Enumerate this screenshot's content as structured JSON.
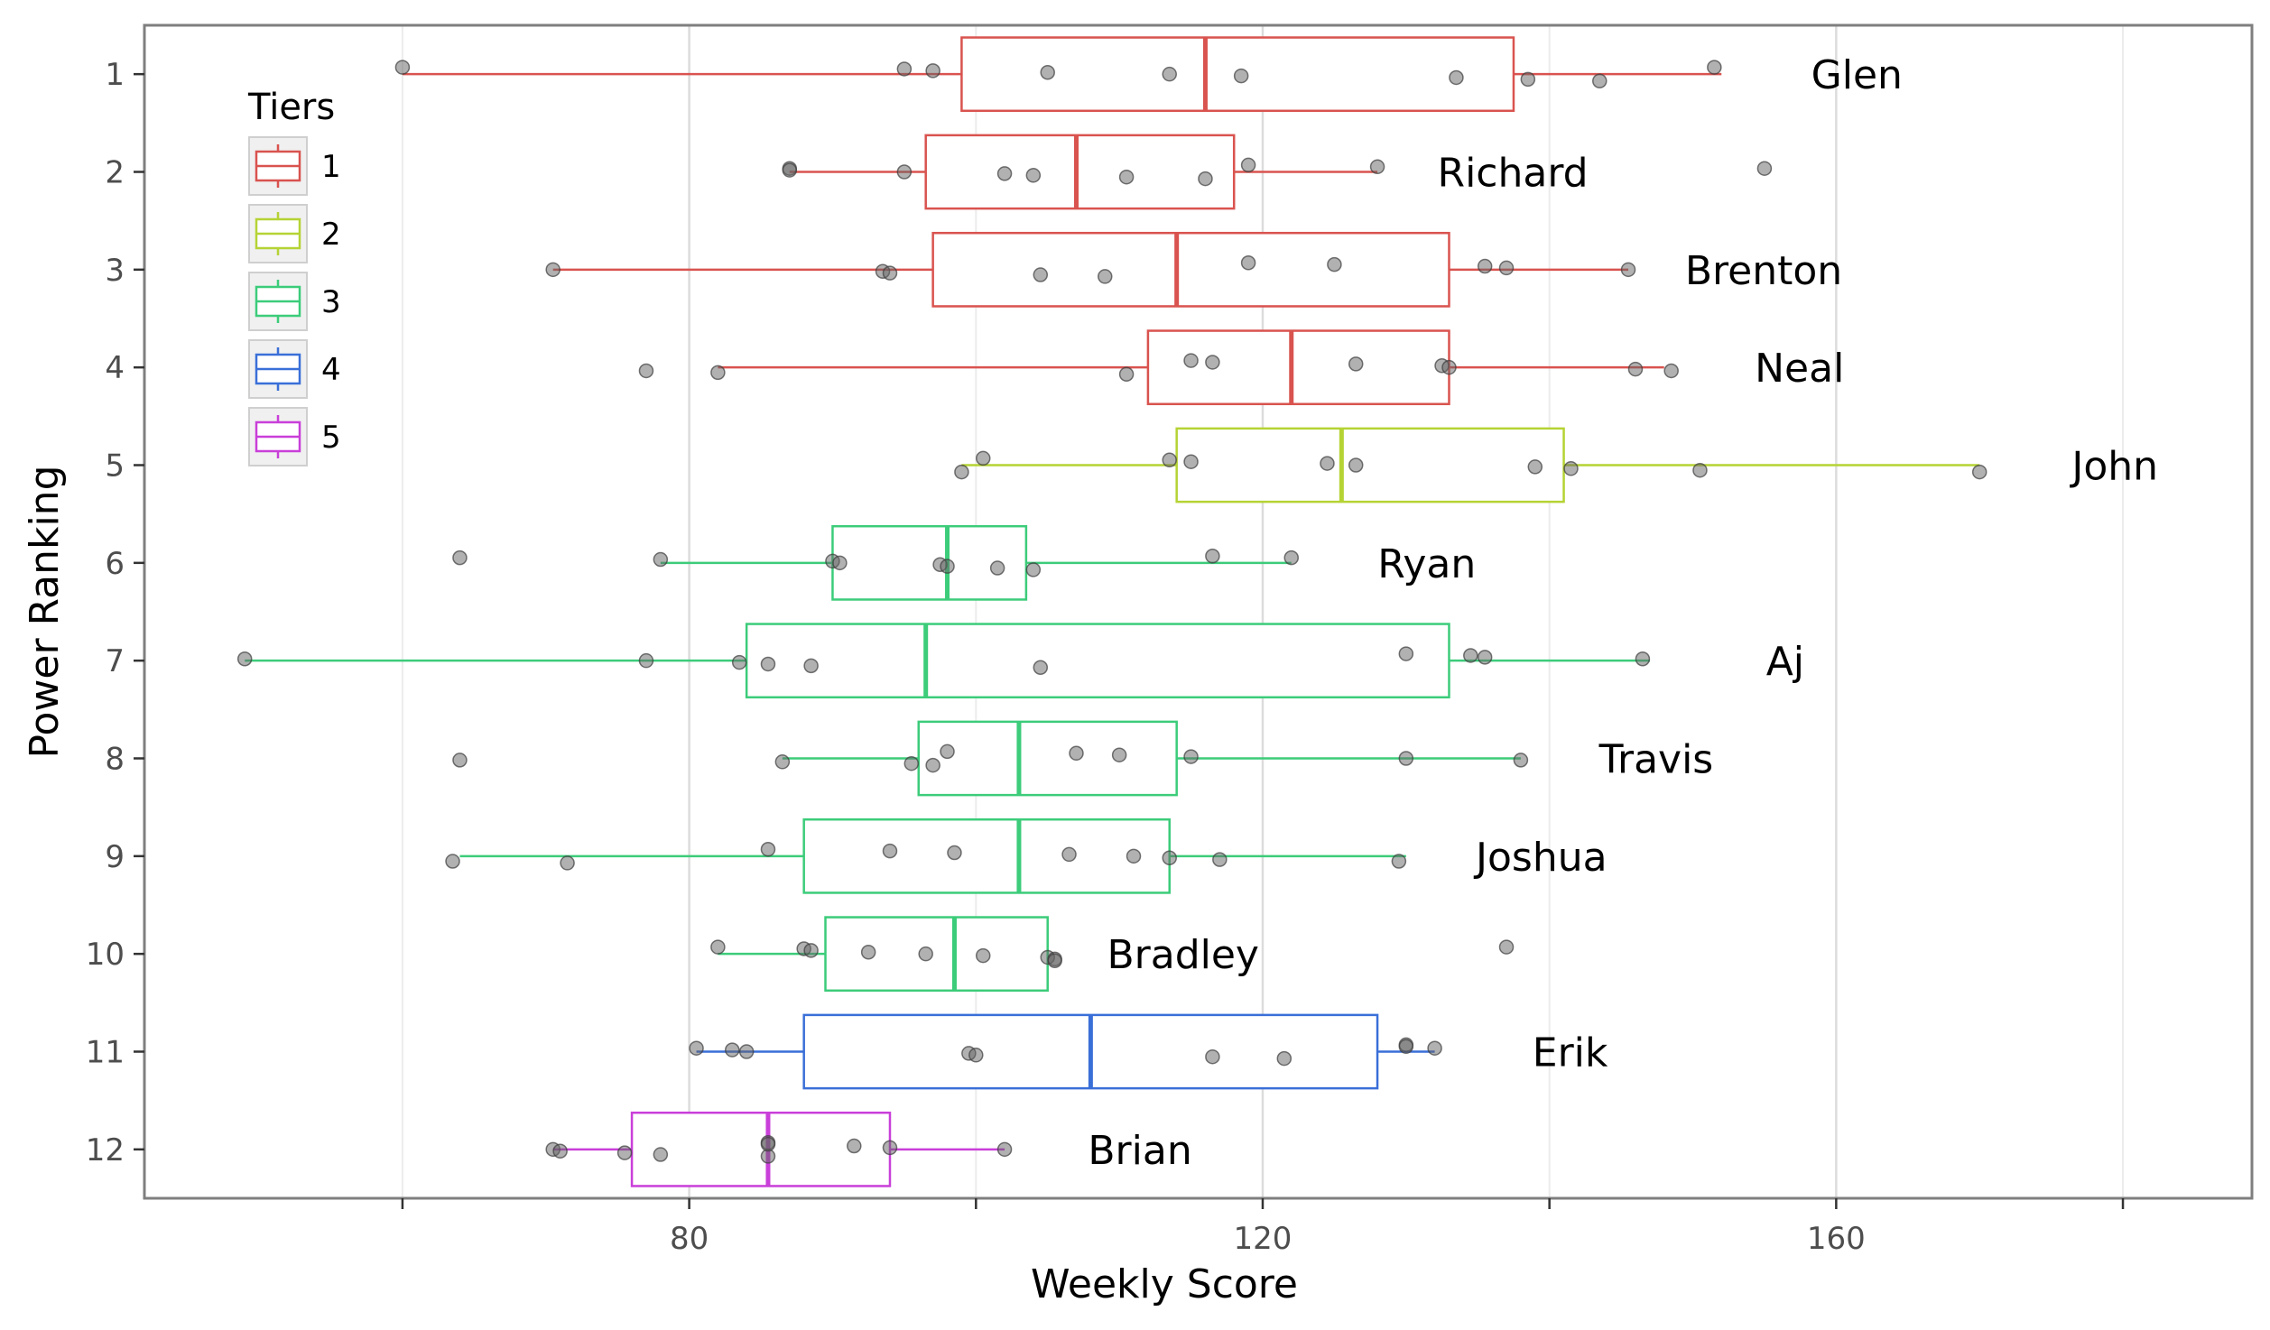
{
  "chart_data": {
    "type": "boxplot",
    "orientation": "horizontal",
    "xlabel": "Weekly Score",
    "ylabel": "Power Ranking",
    "xlim": [
      42,
      189
    ],
    "x_ticks": [
      80,
      120,
      160
    ],
    "x_minor_grid": [
      60,
      100,
      140,
      180
    ],
    "y_ticks": [
      1,
      2,
      3,
      4,
      5,
      6,
      7,
      8,
      9,
      10,
      11,
      12
    ],
    "grid": true,
    "legend": {
      "title": "Tiers",
      "position": "top-left-inside",
      "entries": [
        {
          "label": "1",
          "color": "#d9534f"
        },
        {
          "label": "2",
          "color": "#b5d334"
        },
        {
          "label": "3",
          "color": "#3ccc7a"
        },
        {
          "label": "4",
          "color": "#3a6fd8"
        },
        {
          "label": "5",
          "color": "#c93fd9"
        }
      ]
    },
    "point_color": "#7f7f7f",
    "series": [
      {
        "rank": 1,
        "name": "Glen",
        "tier": 1,
        "whisker_low": 60,
        "q1": 99,
        "median": 116,
        "q3": 137.5,
        "whisker_high": 152,
        "points": [
          60,
          95,
          97,
          105,
          113.5,
          118.5,
          133.5,
          138.5,
          143.5,
          151.5
        ]
      },
      {
        "rank": 2,
        "name": "Richard",
        "tier": 1,
        "whisker_low": 87,
        "q1": 96.5,
        "median": 107,
        "q3": 118,
        "whisker_high": 128,
        "points": [
          87,
          87,
          95,
          102,
          104,
          110.5,
          116,
          119,
          128,
          155
        ]
      },
      {
        "rank": 3,
        "name": "Brenton",
        "tier": 1,
        "whisker_low": 70.5,
        "q1": 97,
        "median": 114,
        "q3": 133,
        "whisker_high": 145.5,
        "points": [
          70.5,
          93.5,
          94,
          104.5,
          109,
          119,
          125,
          135.5,
          137,
          145.5
        ]
      },
      {
        "rank": 4,
        "name": "Neal",
        "tier": 1,
        "whisker_low": 82,
        "q1": 112,
        "median": 122,
        "q3": 133,
        "whisker_high": 148,
        "points": [
          77,
          82,
          110.5,
          115,
          116.5,
          126.5,
          132.5,
          133,
          146,
          148.5
        ]
      },
      {
        "rank": 5,
        "name": "John",
        "tier": 2,
        "whisker_low": 99,
        "q1": 114,
        "median": 125.5,
        "q3": 141,
        "whisker_high": 170,
        "points": [
          99,
          100.5,
          113.5,
          115,
          124.5,
          126.5,
          139,
          141.5,
          150.5,
          170
        ]
      },
      {
        "rank": 6,
        "name": "Ryan",
        "tier": 3,
        "whisker_low": 78,
        "q1": 90,
        "median": 98,
        "q3": 103.5,
        "whisker_high": 122,
        "points": [
          64,
          78,
          90,
          90.5,
          97.5,
          98,
          101.5,
          104,
          116.5,
          122
        ]
      },
      {
        "rank": 7,
        "name": "Aj",
        "tier": 3,
        "whisker_low": 49,
        "q1": 84,
        "median": 96.5,
        "q3": 133,
        "whisker_high": 147,
        "points": [
          49,
          77,
          83.5,
          85.5,
          88.5,
          104.5,
          130,
          134.5,
          135.5,
          146.5
        ]
      },
      {
        "rank": 8,
        "name": "Travis",
        "tier": 3,
        "whisker_low": 86.5,
        "q1": 96,
        "median": 103,
        "q3": 114,
        "whisker_high": 138,
        "points": [
          64,
          86.5,
          95.5,
          97,
          98,
          107,
          110,
          115,
          130,
          138
        ]
      },
      {
        "rank": 9,
        "name": "Joshua",
        "tier": 3,
        "whisker_low": 64,
        "q1": 88,
        "median": 103,
        "q3": 113.5,
        "whisker_high": 130,
        "points": [
          63.5,
          71.5,
          85.5,
          94,
          98.5,
          106.5,
          111,
          113.5,
          117,
          129.5
        ]
      },
      {
        "rank": 10,
        "name": "Bradley",
        "tier": 3,
        "whisker_low": 82,
        "q1": 89.5,
        "median": 98.5,
        "q3": 105,
        "whisker_high": 105,
        "points": [
          82,
          88,
          88.5,
          92.5,
          96.5,
          100.5,
          105,
          105.5,
          105.5,
          137
        ]
      },
      {
        "rank": 11,
        "name": "Erik",
        "tier": 4,
        "whisker_low": 80.5,
        "q1": 88,
        "median": 108,
        "q3": 128,
        "whisker_high": 132,
        "points": [
          80.5,
          83,
          84,
          99.5,
          100,
          116.5,
          121.5,
          130,
          130,
          132
        ]
      },
      {
        "rank": 12,
        "name": "Brian",
        "tier": 5,
        "whisker_low": 70.5,
        "q1": 76,
        "median": 85.5,
        "q3": 94,
        "whisker_high": 102,
        "points": [
          70.5,
          71,
          75.5,
          78,
          85.5,
          85.5,
          85.5,
          91.5,
          94,
          102
        ]
      }
    ]
  }
}
